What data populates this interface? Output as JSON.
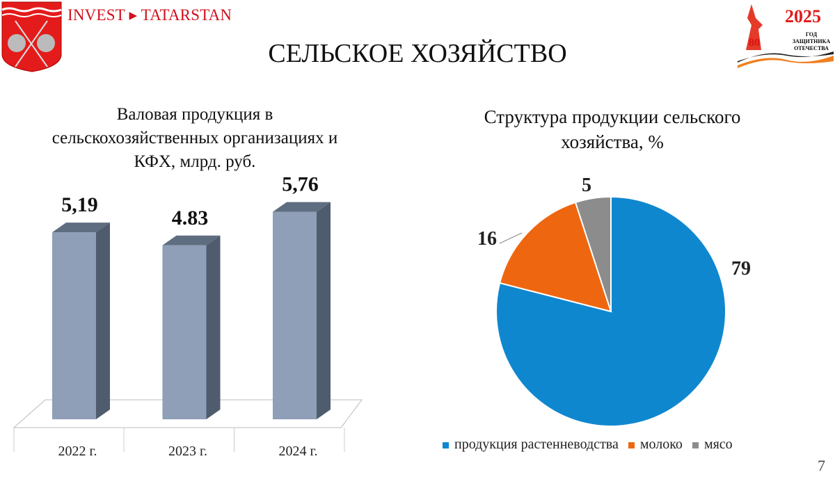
{
  "header": {
    "brand": "INVEST ▸ TATARSTAN",
    "title": "СЕЛЬСКОЕ ХОЗЯЙСТВО",
    "badge_year": "2025",
    "badge_text": [
      "ГОД",
      "ЗАЩИТНИКА",
      "ОТЕЧЕСТВА"
    ],
    "badge_logo": "80 ПОБЕДА!",
    "page": "7"
  },
  "chart_data": [
    {
      "type": "bar",
      "title": "Валовая продукция в сельскохозяйственных организациях и КФХ, млрд. руб.",
      "title_lines": [
        "Валовая продукция в",
        "сельскохозяйственных  организациях и",
        "КФХ, млрд. руб."
      ],
      "categories": [
        "2022 г.",
        "2023 г.",
        "2024 г."
      ],
      "values": [
        5.19,
        4.83,
        5.76
      ],
      "labels": [
        "5,19",
        "4.83",
        "5,76"
      ],
      "color": "#8e9fb7"
    },
    {
      "type": "pie",
      "title": "Структура продукции сельского хозяйства, %",
      "title_lines": [
        "Структура продукции сельского",
        "хозяйства, %"
      ],
      "slices": [
        {
          "name": "продукция растенневодства",
          "value": 79,
          "color": "#0f87cf"
        },
        {
          "name": "молоко",
          "value": 16,
          "color": "#ee6710"
        },
        {
          "name": "мясо",
          "value": 5,
          "color": "#8c8c8c"
        }
      ],
      "legend": "bottom"
    }
  ]
}
